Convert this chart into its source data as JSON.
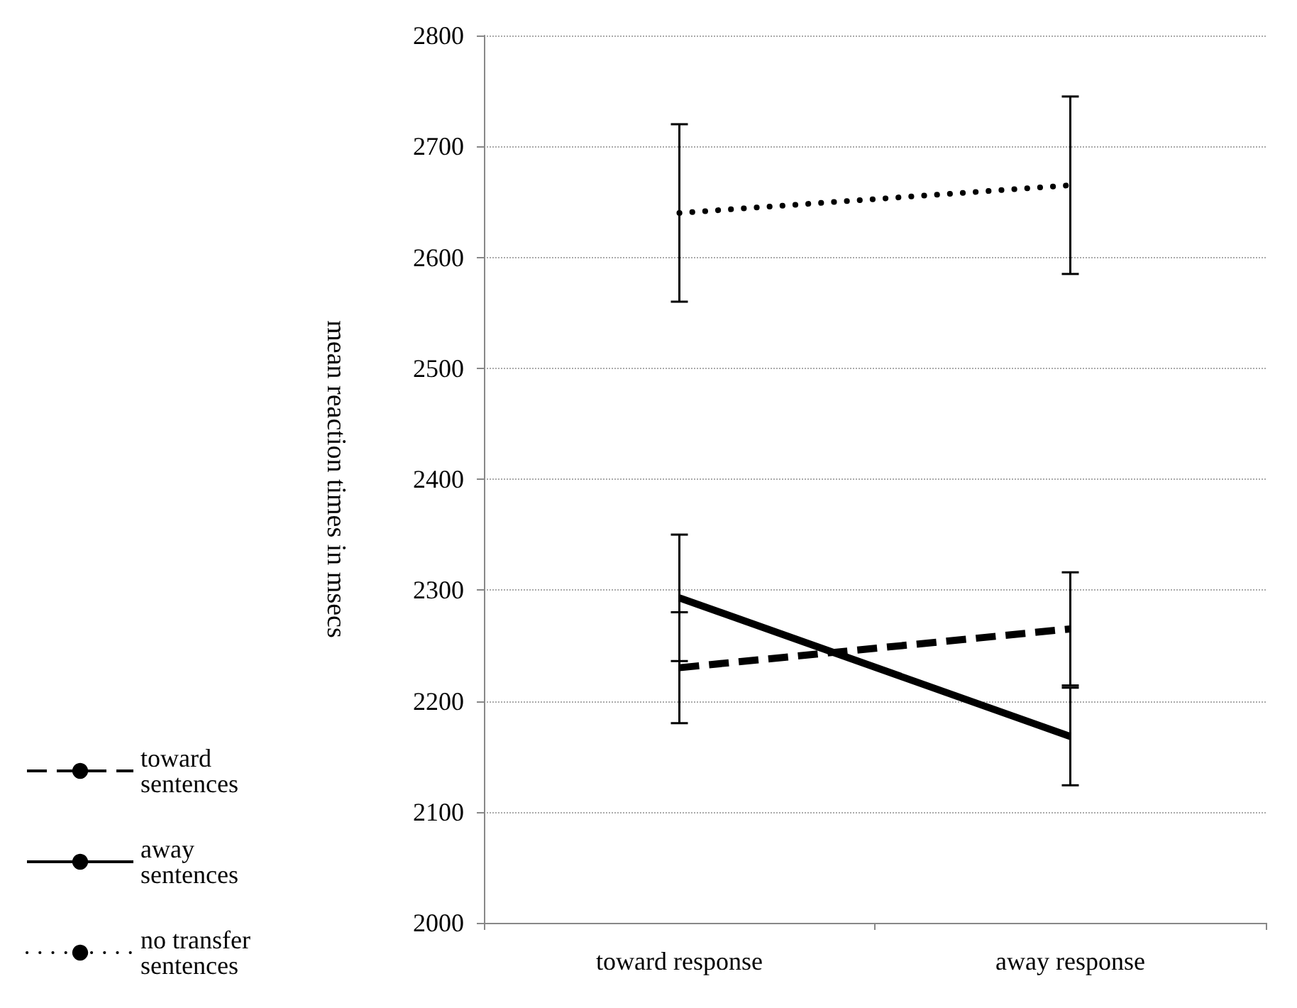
{
  "chart_data": {
    "type": "line",
    "ylabel": "mean reaction times in msecs",
    "categories": [
      "toward response",
      "away response"
    ],
    "series": [
      {
        "name": "toward sentences",
        "color": "#000000",
        "line_style": "dashed",
        "values": [
          2230,
          2265
        ],
        "errors": [
          50,
          51
        ]
      },
      {
        "name": "away sentences",
        "color": "#000000",
        "line_style": "solid",
        "values": [
          2293,
          2168
        ],
        "errors": [
          57,
          44
        ]
      },
      {
        "name": "no transfer sentences",
        "color": "#000000",
        "line_style": "dotted",
        "values": [
          2640,
          2665
        ],
        "errors": [
          80,
          80
        ]
      }
    ],
    "ylim": [
      2000,
      2800
    ],
    "yticks": [
      2000,
      2100,
      2200,
      2300,
      2400,
      2500,
      2600,
      2700,
      2800
    ],
    "grid": "y",
    "legend": "left",
    "marker": "none"
  }
}
